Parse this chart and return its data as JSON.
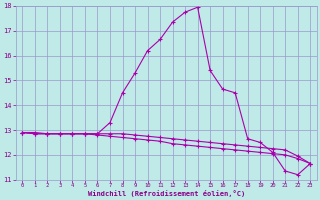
{
  "x": [
    0,
    1,
    2,
    3,
    4,
    5,
    6,
    7,
    8,
    9,
    10,
    11,
    12,
    13,
    14,
    15,
    16,
    17,
    18,
    19,
    20,
    21,
    22,
    23
  ],
  "line1": [
    12.9,
    12.9,
    12.85,
    12.85,
    12.85,
    12.85,
    12.8,
    12.75,
    12.7,
    12.65,
    12.6,
    12.55,
    12.45,
    12.4,
    12.35,
    12.3,
    12.25,
    12.2,
    12.15,
    12.1,
    12.05,
    12.0,
    11.85,
    11.65
  ],
  "line2": [
    12.9,
    12.85,
    12.85,
    12.85,
    12.85,
    12.85,
    12.85,
    13.3,
    14.5,
    15.3,
    16.2,
    16.65,
    17.35,
    17.75,
    17.95,
    15.4,
    14.65,
    14.5,
    12.65,
    12.5,
    12.1,
    11.35,
    11.2,
    11.65
  ],
  "line3": [
    12.9,
    12.85,
    12.85,
    12.85,
    12.85,
    12.85,
    12.85,
    12.85,
    12.85,
    12.8,
    12.75,
    12.7,
    12.65,
    12.6,
    12.55,
    12.5,
    12.45,
    12.4,
    12.35,
    12.3,
    12.25,
    12.2,
    11.95,
    11.65
  ],
  "line_color": "#aa00aa",
  "bg_color": "#c0eae8",
  "grid_color": "#9999cc",
  "xlabel": "Windchill (Refroidissement éolien,°C)",
  "xlabel_color": "#880088",
  "tick_color": "#880088",
  "xlim_min": -0.5,
  "xlim_max": 23.5,
  "ylim_min": 11,
  "ylim_max": 18,
  "yticks": [
    11,
    12,
    13,
    14,
    15,
    16,
    17,
    18
  ],
  "xticks": [
    0,
    1,
    2,
    3,
    4,
    5,
    6,
    7,
    8,
    9,
    10,
    11,
    12,
    13,
    14,
    15,
    16,
    17,
    18,
    19,
    20,
    21,
    22,
    23
  ],
  "marker_size": 2.5,
  "line_width": 0.8
}
